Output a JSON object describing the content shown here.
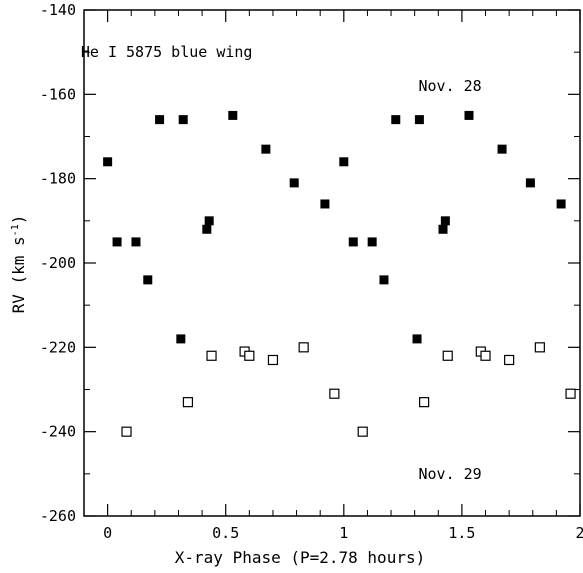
{
  "chart_data": {
    "type": "scatter",
    "title": "",
    "xlabel": "X-ray Phase (P=2.78 hours)",
    "ylabel": "RV (km s",
    "ylabel_sup": "-1",
    "ylabel_close": ")",
    "xlim": [
      -0.1,
      2.0
    ],
    "ylim": [
      -260,
      -140
    ],
    "x_ticks": [
      0,
      0.5,
      1,
      1.5,
      2
    ],
    "x_tick_labels": [
      "0",
      "0.5",
      "1",
      "1.5",
      "2"
    ],
    "y_ticks": [
      -140,
      -160,
      -180,
      -200,
      -220,
      -240,
      -260
    ],
    "y_tick_labels": [
      "-140",
      "-160",
      "-180",
      "-200",
      "-220",
      "-240",
      "-260"
    ],
    "grid": false,
    "annotations": [
      {
        "text": "He I 5875 blue wing",
        "x": 0.25,
        "y": -150
      },
      {
        "text": "Nov. 28",
        "x": 1.45,
        "y": -158
      },
      {
        "text": "Nov. 29",
        "x": 1.45,
        "y": -250
      }
    ],
    "series": [
      {
        "marker": "filled-square",
        "color": "#000000",
        "x": [
          0.0,
          0.04,
          0.12,
          0.17,
          0.22,
          0.32,
          0.42,
          0.43,
          0.53,
          0.67,
          0.79,
          0.92,
          1.0,
          1.04,
          1.12,
          1.17,
          1.22,
          1.32,
          1.42,
          1.43,
          1.53,
          1.67,
          1.79,
          1.92,
          0.31,
          1.31
        ],
        "y": [
          -176,
          -195,
          -195,
          -204,
          -166,
          -166,
          -192,
          -190,
          -165,
          -173,
          -181,
          -186,
          -176,
          -195,
          -195,
          -204,
          -166,
          -166,
          -192,
          -190,
          -165,
          -173,
          -181,
          -186,
          -218,
          -218
        ]
      },
      {
        "marker": "open-square",
        "color": "#000000",
        "x": [
          0.08,
          0.34,
          0.44,
          0.58,
          0.6,
          0.7,
          0.83,
          0.96,
          1.08,
          1.34,
          1.44,
          1.58,
          1.6,
          1.7,
          1.83,
          1.96
        ],
        "y": [
          -240,
          -233,
          -222,
          -221,
          -222,
          -223,
          -220,
          -231,
          -240,
          -233,
          -222,
          -221,
          -222,
          -223,
          -220,
          -231
        ]
      }
    ]
  }
}
